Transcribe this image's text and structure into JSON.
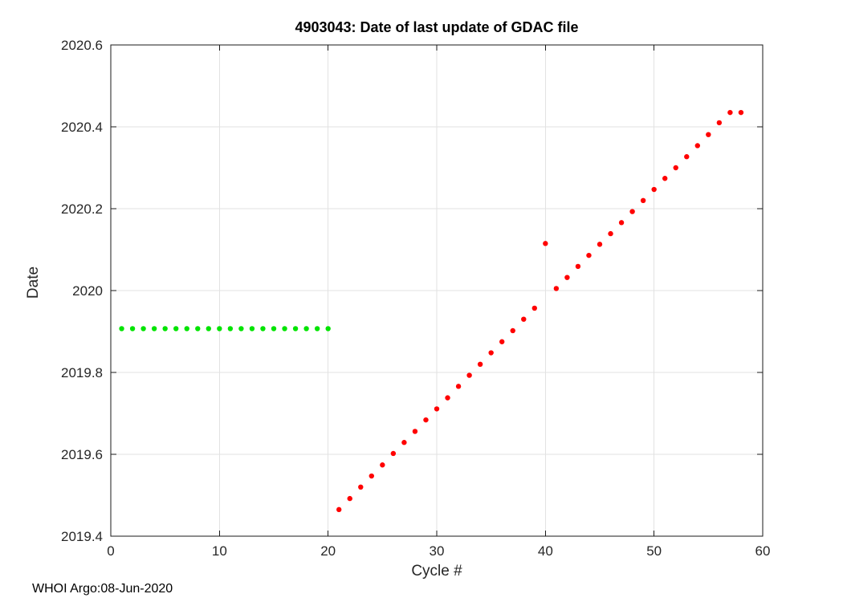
{
  "figure": {
    "title": "4903043: Date of last update of GDAC file",
    "xlabel": "Cycle #",
    "ylabel": "Date",
    "footer": "WHOI Argo:08-Jun-2020"
  },
  "chart_data": {
    "type": "scatter",
    "title": "4903043: Date of last update of GDAC file",
    "xlabel": "Cycle #",
    "ylabel": "Date",
    "xlim": [
      0,
      60
    ],
    "ylim": [
      2019.4,
      2020.6
    ],
    "xticks": [
      0,
      10,
      20,
      30,
      40,
      50,
      60
    ],
    "yticks": [
      2019.4,
      2019.6,
      2019.8,
      2020,
      2020.2,
      2020.4,
      2020.6
    ],
    "ytick_labels": [
      "2019.4",
      "2019.6",
      "2019.8",
      "2020",
      "2020.2",
      "2020.4",
      "2020.6"
    ],
    "grid": true,
    "legend_position": "none",
    "axis_color": "#1a1a1a",
    "label_color": "#262626",
    "grid_color": "#e2e2e2",
    "marker": "dot",
    "marker_radius": 3.2,
    "series": [
      {
        "name": "green",
        "color": "#00e400",
        "x": [
          1,
          2,
          3,
          4,
          5,
          6,
          7,
          8,
          9,
          10,
          11,
          12,
          13,
          14,
          15,
          16,
          17,
          18,
          19,
          20
        ],
        "y": [
          2019.907,
          2019.907,
          2019.907,
          2019.907,
          2019.907,
          2019.907,
          2019.907,
          2019.907,
          2019.907,
          2019.907,
          2019.907,
          2019.907,
          2019.907,
          2019.907,
          2019.907,
          2019.907,
          2019.907,
          2019.907,
          2019.907,
          2019.907
        ]
      },
      {
        "name": "red",
        "color": "#ff0000",
        "x": [
          21,
          22,
          23,
          24,
          25,
          26,
          27,
          28,
          29,
          30,
          31,
          32,
          33,
          34,
          35,
          36,
          37,
          38,
          39,
          40,
          41,
          42,
          43,
          44,
          45,
          46,
          47,
          48,
          49,
          50,
          51,
          52,
          53,
          54,
          55,
          56,
          57,
          58
        ],
        "y": [
          2019.465,
          2019.492,
          2019.52,
          2019.547,
          2019.574,
          2019.602,
          2019.629,
          2019.656,
          2019.684,
          2019.711,
          2019.738,
          2019.766,
          2019.793,
          2019.82,
          2019.848,
          2019.875,
          2019.902,
          2019.93,
          2019.957,
          2020.115,
          2020.005,
          2020.032,
          2020.059,
          2020.086,
          2020.113,
          2020.139,
          2020.166,
          2020.193,
          2020.22,
          2020.247,
          2020.274,
          2020.3,
          2020.327,
          2020.354,
          2020.381,
          2020.41,
          2020.435,
          2020.435
        ]
      }
    ]
  }
}
